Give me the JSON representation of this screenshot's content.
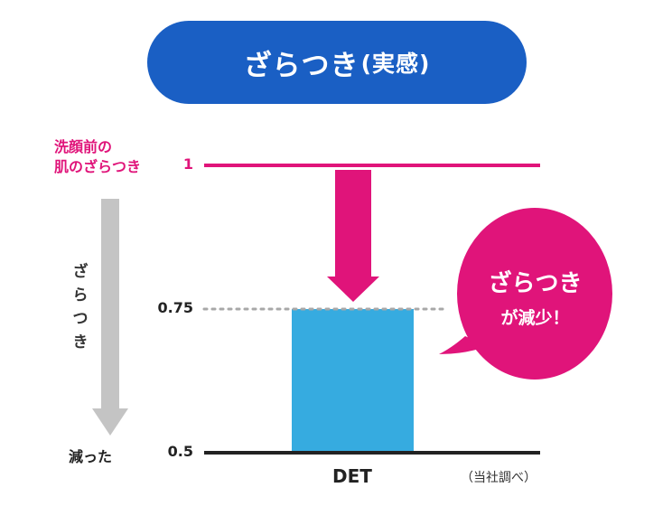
{
  "title": {
    "main": "ざらつき",
    "sub": "(実感)"
  },
  "baseline_label": {
    "line1": "洗顔前の",
    "line2": "肌のざらつき"
  },
  "vertical_label": [
    "ざ",
    "ら",
    "つ",
    "き"
  ],
  "decreased_label": "減った",
  "source_label": "（当社調べ）",
  "bubble": {
    "line1": "ざらつき",
    "line2": "が減少！"
  },
  "colors": {
    "accent_pink": "#e0147a",
    "bar_blue": "#36abe0",
    "title_blue": "#1a5fc4",
    "arrow_gray": "#c4c4c4"
  },
  "chart_data": {
    "type": "bar",
    "categories": [
      "DET"
    ],
    "values": [
      0.75
    ],
    "reference_value": 1,
    "ylim": [
      0.5,
      1
    ],
    "yticks": [
      "1",
      "0.75",
      "0.5"
    ],
    "xlabel": "",
    "ylabel": "",
    "title": ""
  }
}
